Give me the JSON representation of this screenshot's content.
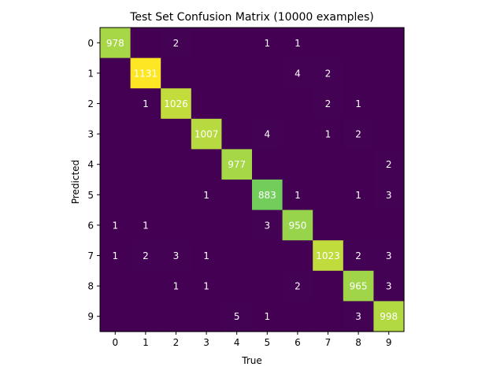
{
  "chart_data": {
    "type": "heatmap",
    "title": "Test Set Confusion Matrix (10000 examples)",
    "xlabel": "True",
    "ylabel": "Predicted",
    "x_categories": [
      "0",
      "1",
      "2",
      "3",
      "4",
      "5",
      "6",
      "7",
      "8",
      "9"
    ],
    "y_categories": [
      "0",
      "1",
      "2",
      "3",
      "4",
      "5",
      "6",
      "7",
      "8",
      "9"
    ],
    "colormap": "viridis",
    "color_range": [
      0,
      1131
    ],
    "matrix": [
      [
        978,
        0,
        2,
        0,
        0,
        1,
        1,
        0,
        0,
        0
      ],
      [
        0,
        1131,
        0,
        0,
        0,
        0,
        4,
        2,
        0,
        0
      ],
      [
        0,
        1,
        1026,
        0,
        0,
        0,
        0,
        2,
        1,
        0
      ],
      [
        0,
        0,
        0,
        1007,
        0,
        4,
        0,
        1,
        2,
        0
      ],
      [
        0,
        0,
        0,
        0,
        977,
        0,
        0,
        0,
        0,
        2
      ],
      [
        0,
        0,
        0,
        1,
        0,
        883,
        1,
        0,
        1,
        3
      ],
      [
        1,
        1,
        0,
        0,
        0,
        3,
        950,
        0,
        0,
        0
      ],
      [
        1,
        2,
        3,
        1,
        0,
        0,
        0,
        1023,
        2,
        3
      ],
      [
        0,
        0,
        1,
        1,
        0,
        0,
        2,
        0,
        965,
        3
      ],
      [
        0,
        0,
        0,
        0,
        5,
        1,
        0,
        0,
        3,
        998
      ]
    ],
    "zero_cells_labeled": false,
    "cell_label_color": "#ffffff"
  }
}
